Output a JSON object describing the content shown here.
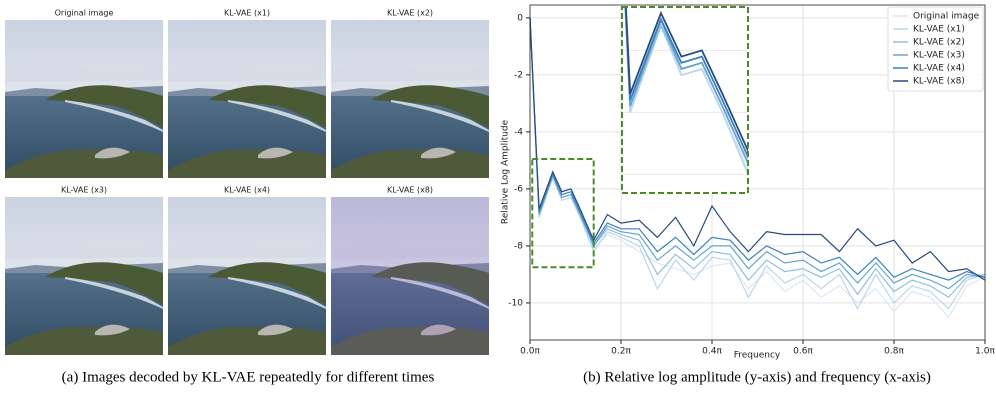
{
  "images": {
    "titles": [
      "Original image",
      "KL-VAE (x1)",
      "KL-VAE (x2)",
      "KL-VAE (x3)",
      "KL-VAE (x4)",
      "KL-VAE (x8)"
    ],
    "caption": "(a) Images decoded by KL-VAE repeatedly for different times"
  },
  "chart_data": {
    "type": "line",
    "caption": "(b) Relative log amplitude (y-axis) and frequency (x-axis)",
    "xlabel": "Frequency",
    "ylabel": "Relative Log Amplitude",
    "x": [
      0,
      0.02,
      0.05,
      0.07,
      0.09,
      0.11,
      0.14,
      0.17,
      0.2,
      0.24,
      0.28,
      0.32,
      0.36,
      0.4,
      0.44,
      0.48,
      0.52,
      0.56,
      0.6,
      0.64,
      0.68,
      0.72,
      0.76,
      0.8,
      0.84,
      0.88,
      0.92,
      0.96,
      1.0
    ],
    "series": [
      {
        "name": "Original image",
        "color": "#dbe7f4",
        "values": [
          0,
          -7.0,
          -5.6,
          -6.4,
          -6.3,
          -7.0,
          -8.1,
          -7.6,
          -7.8,
          -8.2,
          -8.6,
          -8.8,
          -9.0,
          -8.7,
          -8.6,
          -9.5,
          -8.9,
          -9.6,
          -9.2,
          -9.8,
          -9.4,
          -10.0,
          -9.5,
          -10.3,
          -9.6,
          -9.8,
          -10.5,
          -9.4,
          -9.1
        ]
      },
      {
        "name": "KL-VAE (x1)",
        "color": "#bcd6ec",
        "values": [
          0,
          -7.0,
          -5.6,
          -6.4,
          -6.3,
          -7.0,
          -8.2,
          -7.5,
          -7.7,
          -8.0,
          -9.5,
          -8.5,
          -9.2,
          -8.4,
          -8.5,
          -9.8,
          -8.7,
          -9.3,
          -9.0,
          -9.5,
          -9.0,
          -10.2,
          -9.0,
          -10.0,
          -9.4,
          -9.6,
          -10.2,
          -9.2,
          -9.0
        ]
      },
      {
        "name": "KL-VAE (x2)",
        "color": "#93c1e0",
        "values": [
          0,
          -6.9,
          -5.6,
          -6.3,
          -6.2,
          -6.9,
          -8.0,
          -7.4,
          -7.6,
          -7.8,
          -9.0,
          -8.3,
          -8.8,
          -8.2,
          -8.3,
          -9.2,
          -8.5,
          -8.9,
          -8.8,
          -9.1,
          -8.8,
          -9.7,
          -8.8,
          -9.6,
          -9.2,
          -9.4,
          -9.8,
          -9.1,
          -9.0
        ]
      },
      {
        "name": "KL-VAE (x3)",
        "color": "#66a5d3",
        "values": [
          0,
          -6.9,
          -5.5,
          -6.3,
          -6.2,
          -6.9,
          -8.0,
          -7.3,
          -7.5,
          -7.6,
          -8.5,
          -8.0,
          -8.5,
          -8.0,
          -8.0,
          -8.8,
          -8.2,
          -8.6,
          -8.5,
          -8.9,
          -8.6,
          -9.3,
          -8.6,
          -9.3,
          -9.0,
          -9.2,
          -9.5,
          -9.0,
          -9.1
        ]
      },
      {
        "name": "KL-VAE (x4)",
        "color": "#3b7fbc",
        "values": [
          0,
          -6.8,
          -5.5,
          -6.2,
          -6.1,
          -6.8,
          -7.9,
          -7.2,
          -7.4,
          -7.4,
          -8.2,
          -7.7,
          -8.3,
          -7.7,
          -7.8,
          -8.5,
          -8.0,
          -8.3,
          -8.2,
          -8.6,
          -8.4,
          -9.0,
          -8.4,
          -9.1,
          -8.8,
          -9.0,
          -9.2,
          -8.9,
          -9.1
        ]
      },
      {
        "name": "KL-VAE (x8)",
        "color": "#284b7c",
        "values": [
          0,
          -6.7,
          -5.4,
          -6.1,
          -6.0,
          -6.7,
          -7.8,
          -6.9,
          -7.2,
          -7.1,
          -7.7,
          -7.0,
          -8.0,
          -6.6,
          -7.5,
          -8.2,
          -7.5,
          -7.6,
          -7.6,
          -7.6,
          -8.2,
          -7.4,
          -8.0,
          -7.8,
          -8.6,
          -8.2,
          -8.9,
          -8.8,
          -9.2
        ]
      }
    ],
    "xlim": [
      0,
      1.0
    ],
    "ylim": [
      -11.3,
      0.45
    ],
    "xticks": [
      {
        "value": 0,
        "label": "0.0π"
      },
      {
        "value": 0.2,
        "label": "0.2π"
      },
      {
        "value": 0.4,
        "label": "0.4π"
      },
      {
        "value": 0.6,
        "label": "0.6π"
      },
      {
        "value": 0.8,
        "label": "0.8π"
      },
      {
        "value": 1.0,
        "label": "1.0π"
      }
    ],
    "yticks": [
      0,
      -2,
      -4,
      -6,
      -8,
      -10
    ],
    "grid": true,
    "legend": "upper right"
  }
}
